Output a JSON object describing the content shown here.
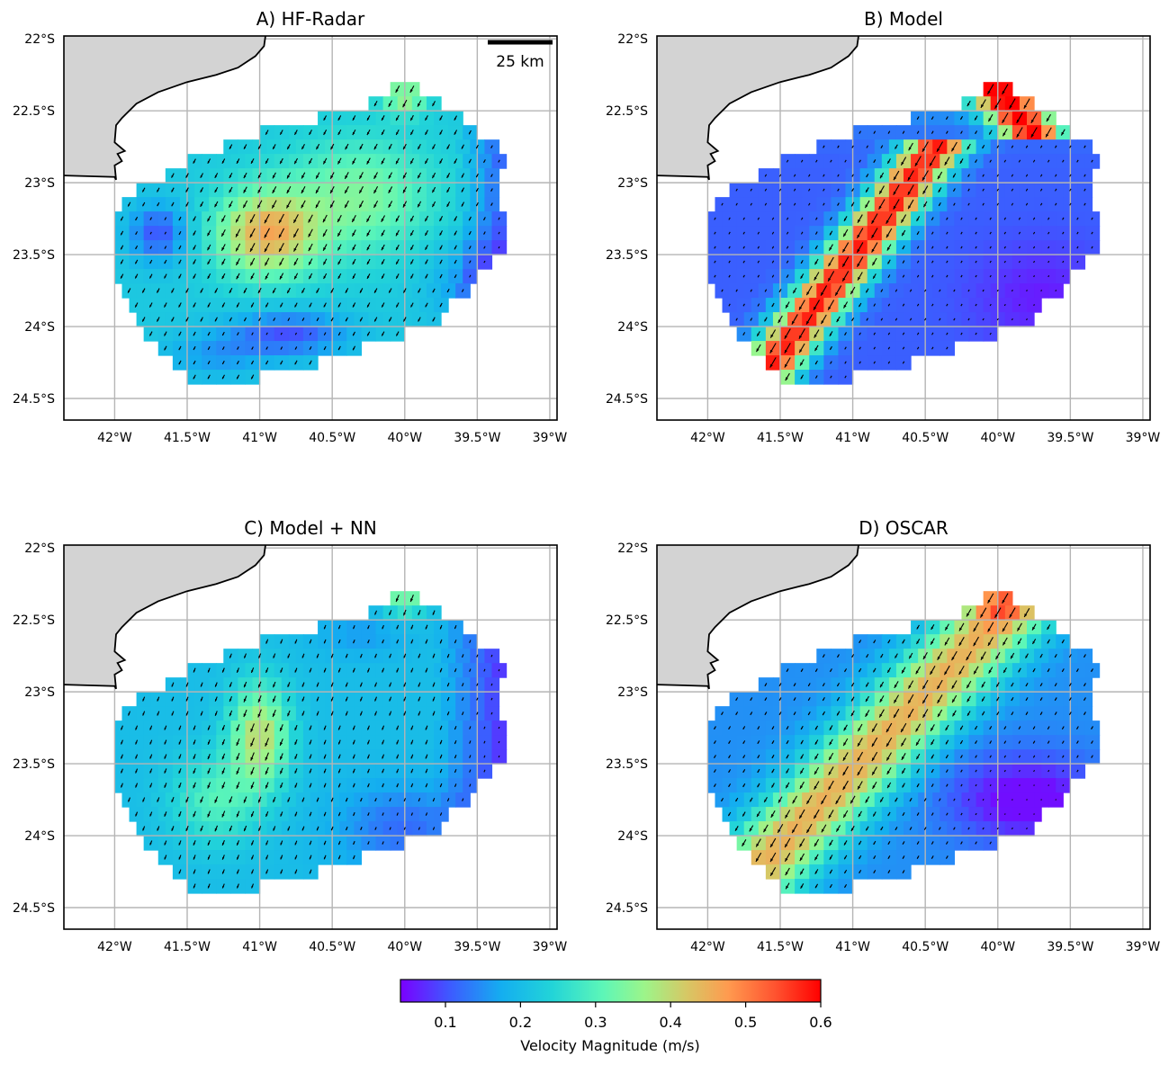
{
  "panels": [
    {
      "title": "A) HF-Radar",
      "field": "hf"
    },
    {
      "title": "B) Model",
      "field": "model"
    },
    {
      "title": "C) Model + NN",
      "field": "nn"
    },
    {
      "title": "D) OSCAR",
      "field": "oscar"
    }
  ],
  "axes": {
    "lon_range": [
      -42.35,
      -38.95
    ],
    "lat_range": [
      -24.65,
      -21.98
    ],
    "lon_ticks": [
      {
        "value": -42.0,
        "label": "42°W"
      },
      {
        "value": -41.5,
        "label": "41.5°W"
      },
      {
        "value": -41.0,
        "label": "41°W"
      },
      {
        "value": -40.5,
        "label": "40.5°W"
      },
      {
        "value": -40.0,
        "label": "40°W"
      },
      {
        "value": -39.5,
        "label": "39.5°W"
      },
      {
        "value": -39.0,
        "label": "39°W"
      }
    ],
    "lat_ticks": [
      {
        "value": -22.0,
        "label": "22°S"
      },
      {
        "value": -22.5,
        "label": "22.5°S"
      },
      {
        "value": -23.0,
        "label": "23°S"
      },
      {
        "value": -23.5,
        "label": "23.5°S"
      },
      {
        "value": -24.0,
        "label": "24°S"
      },
      {
        "value": -24.5,
        "label": "24.5°S"
      }
    ]
  },
  "scale_bar": {
    "label": "25 km"
  },
  "land": {
    "color": "#d3d3d3"
  },
  "colorbar": {
    "label": "Velocity Magnitude (m/s)",
    "min": 0.04,
    "max": 0.6,
    "ticks": [
      {
        "value": 0.1,
        "label": "0.1"
      },
      {
        "value": 0.2,
        "label": "0.2"
      },
      {
        "value": 0.3,
        "label": "0.3"
      },
      {
        "value": 0.4,
        "label": "0.4"
      },
      {
        "value": 0.5,
        "label": "0.5"
      },
      {
        "value": 0.6,
        "label": "0.6"
      }
    ],
    "colors": [
      "#7a00ff",
      "#3c5cff",
      "#14aef0",
      "#22d4d8",
      "#5cf6b8",
      "#9cf58a",
      "#d6c865",
      "#ff9a4f",
      "#ff5430",
      "#ff0000"
    ]
  }
}
